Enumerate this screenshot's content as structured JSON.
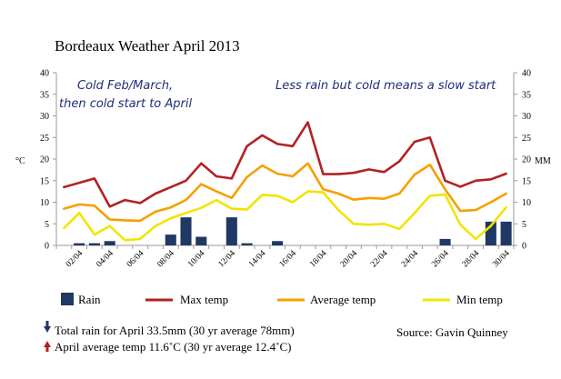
{
  "chart_data": {
    "type": "bar+line",
    "title": "Bordeaux Weather April 2013",
    "ylabel_left": "°C",
    "ylabel_right": "MM",
    "ylim_left": [
      0,
      40
    ],
    "ylim_right": [
      0,
      40
    ],
    "yticks": [
      0,
      5,
      10,
      15,
      20,
      25,
      30,
      35,
      40
    ],
    "grid": false,
    "legend_position": "bottom",
    "x_tick_labels": [
      "02/04",
      "04/04",
      "06/04",
      "08/04",
      "10/04",
      "12/04",
      "14/04",
      "16/04",
      "18/04",
      "20/04",
      "22/04",
      "24/04",
      "26/04",
      "28/04",
      "30/04"
    ],
    "days": [
      1,
      2,
      3,
      4,
      5,
      6,
      7,
      8,
      9,
      10,
      11,
      12,
      13,
      14,
      15,
      16,
      17,
      18,
      19,
      20,
      21,
      22,
      23,
      24,
      25,
      26,
      27,
      28,
      29,
      30
    ],
    "series": [
      {
        "name": "Rain",
        "kind": "bar",
        "axis": "right",
        "color": "#1f3864",
        "values": [
          0,
          0.5,
          0.5,
          1,
          0,
          0,
          0,
          2.5,
          6.5,
          2,
          0,
          6.5,
          0.5,
          0,
          1,
          0,
          0,
          0,
          0,
          0,
          0,
          0,
          0,
          0,
          0,
          1.5,
          0,
          0,
          5.5,
          5.5
        ]
      },
      {
        "name": "Max temp",
        "kind": "line",
        "axis": "left",
        "color": "#b22222",
        "values": [
          13.5,
          14.5,
          15.5,
          9,
          10.5,
          9.8,
          12,
          13.5,
          15,
          19,
          16,
          15.5,
          23,
          25.5,
          23.5,
          23,
          28.5,
          16.5,
          16.5,
          16.8,
          17.6,
          17,
          19.5,
          24,
          25,
          15,
          13.6,
          15,
          15.3,
          16.6
        ]
      },
      {
        "name": "Average temp",
        "kind": "line",
        "axis": "left",
        "color": "#f5a000",
        "values": [
          8.5,
          9.5,
          9.2,
          6,
          5.8,
          5.7,
          7.8,
          8.8,
          10.5,
          14.2,
          12.5,
          11,
          15.8,
          18.5,
          16.6,
          16,
          19,
          13,
          12,
          10.6,
          11,
          10.8,
          12,
          16.4,
          18.7,
          13,
          8,
          8.2,
          10,
          12
        ]
      },
      {
        "name": "Min temp",
        "kind": "line",
        "axis": "left",
        "color": "#f2e400",
        "values": [
          4,
          7.5,
          2.5,
          4.5,
          1.2,
          1.5,
          4.5,
          6.3,
          7.5,
          8.7,
          10.5,
          8.5,
          8.3,
          11.7,
          11.5,
          10,
          12.5,
          12.3,
          8.2,
          5,
          4.8,
          5,
          3.8,
          7.5,
          11.5,
          11.8,
          4.8,
          1.5,
          4.5,
          8.8
        ]
      }
    ],
    "annotations": [
      "Cold Feb/March,",
      "then cold start to April",
      "Less rain but cold means a slow start"
    ]
  },
  "legend": {
    "rain": "Rain",
    "max": "Max temp",
    "avg": "Average temp",
    "min": "Min temp"
  },
  "notes": {
    "rain_total": "Total rain for April 33.5mm (30 yr average 78mm)",
    "temp_avg": "April average temp 11.6˚C (30 yr average 12.4˚C)",
    "source": "Source: Gavin Quinney"
  },
  "colors": {
    "rain": "#1f3864",
    "max": "#b22222",
    "avg": "#f5a000",
    "min": "#f2e400",
    "annotation": "#1f2e7a",
    "axis": "#9a9a9a"
  }
}
